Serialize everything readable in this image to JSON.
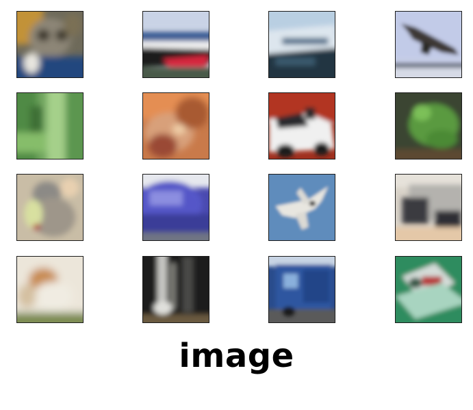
{
  "caption": "image",
  "grid": {
    "rows": 4,
    "columns": 4,
    "thumbnails": [
      {
        "subject": "cat"
      },
      {
        "subject": "ship"
      },
      {
        "subject": "ship"
      },
      {
        "subject": "airplane"
      },
      {
        "subject": "frog"
      },
      {
        "subject": "frog"
      },
      {
        "subject": "automobile"
      },
      {
        "subject": "frog"
      },
      {
        "subject": "cat"
      },
      {
        "subject": "automobile"
      },
      {
        "subject": "airplane"
      },
      {
        "subject": "truck"
      },
      {
        "subject": "dog"
      },
      {
        "subject": "horse"
      },
      {
        "subject": "truck"
      },
      {
        "subject": "ship"
      }
    ]
  }
}
